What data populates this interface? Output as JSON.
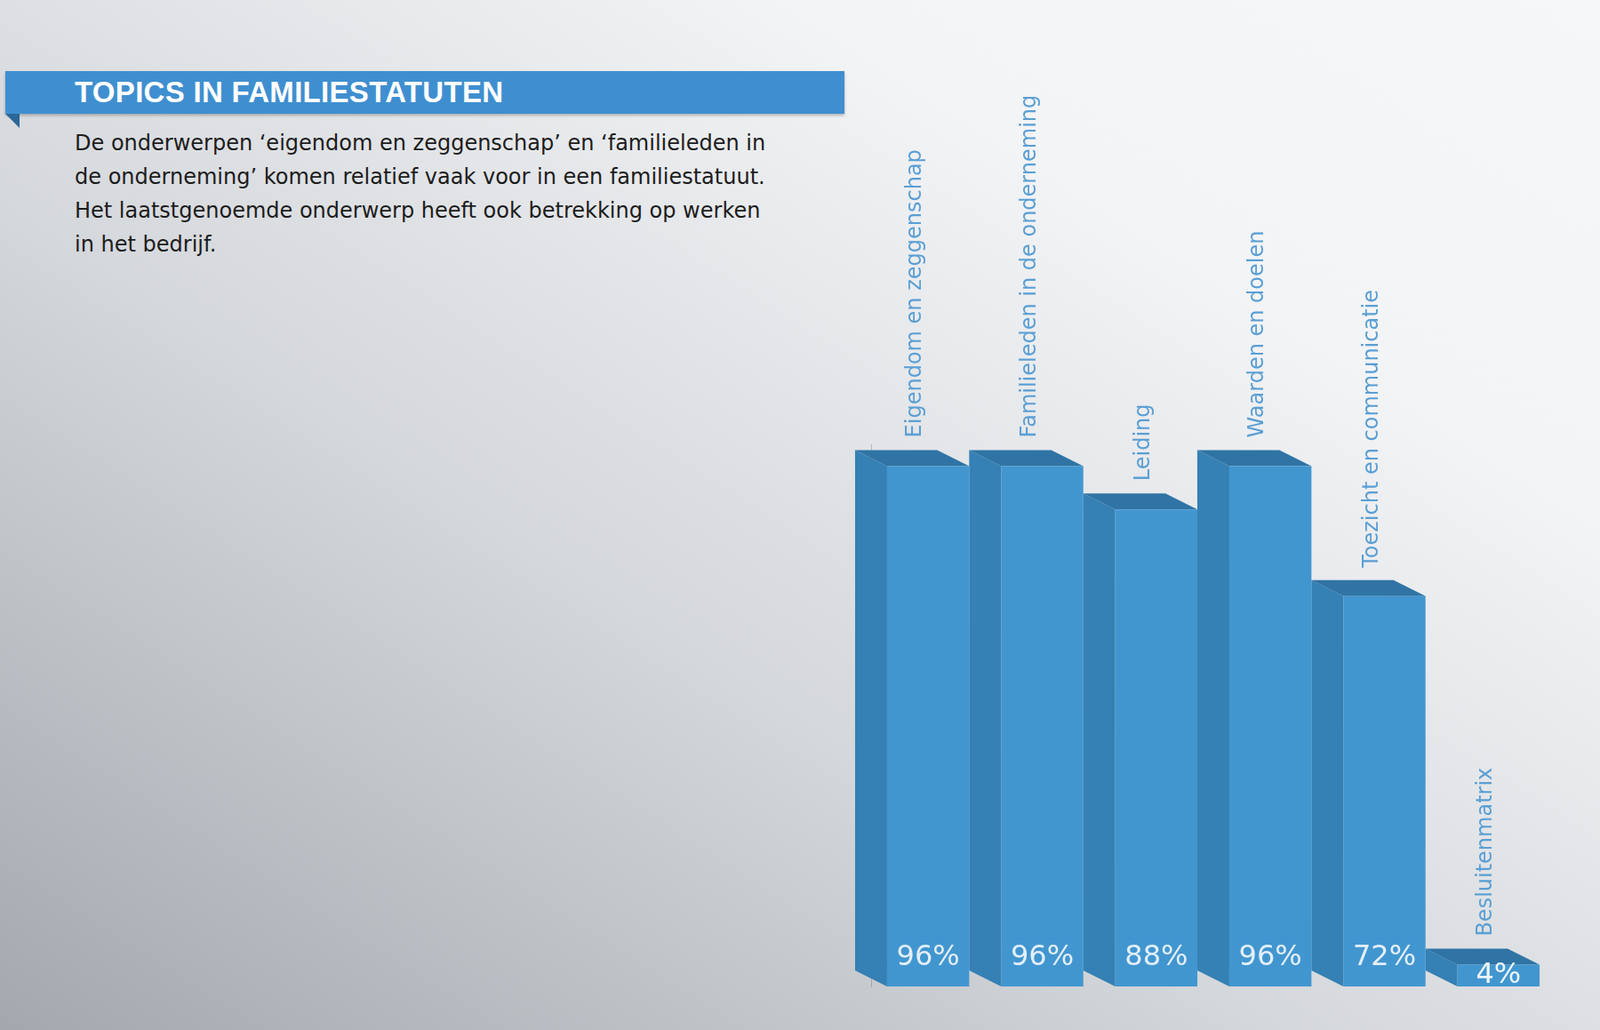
{
  "chart_data": {
    "type": "bar",
    "title": "TOPICS IN FAMILIESTATUTEN",
    "subtitle": "De onderwerpen ‘eigendom en zeggenschap’ en ‘familieleden in de onderneming’ komen relatief vaak voor in een familiestatuut. Het laatstgenoemde onderwerp heeft ook betrekking op werken in het bedrijf.",
    "categories": [
      "Eigendom en zeggenschap",
      "Familieleden in de onderneming",
      "Leiding",
      "Waarden en doelen",
      "Toezicht en communicatie",
      "Besluitenmatrix"
    ],
    "values": [
      96,
      96,
      88,
      96,
      72,
      4
    ],
    "value_labels": [
      "96%",
      "96%",
      "88%",
      "96%",
      "72%",
      "4%"
    ],
    "color": "#4296d0",
    "ylim": [
      0,
      100
    ],
    "grid": false,
    "data_labels": true,
    "tick_labels": false
  }
}
